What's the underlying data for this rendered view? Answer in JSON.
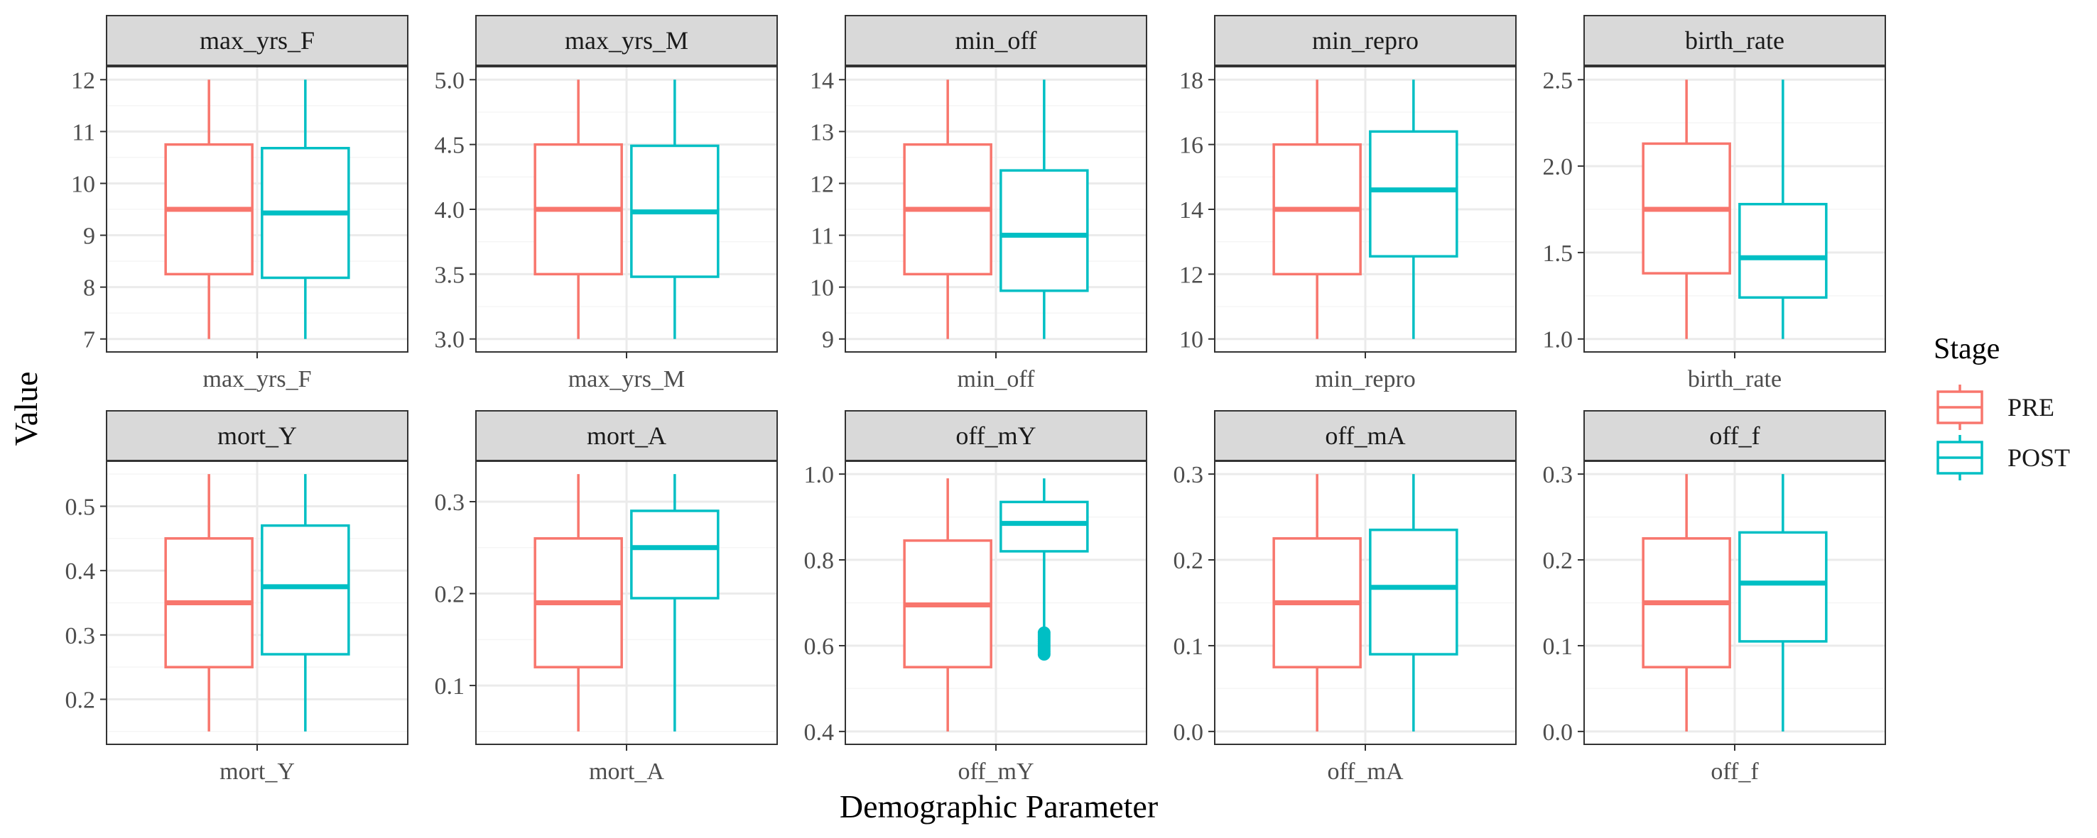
{
  "colors": {
    "PRE": "#F8766D",
    "POST": "#00BFC4",
    "grid_major": "#EBEBEB",
    "grid_minor": "#F5F5F5",
    "strip_fill": "#D9D9D9",
    "panel_border": "#333333"
  },
  "chart_data": {
    "type": "boxplot",
    "xlabel": "Demographic Parameter",
    "ylabel": "Value",
    "legend": {
      "title": "Stage",
      "position": "right",
      "entries": [
        "PRE",
        "POST"
      ]
    },
    "grid": true,
    "panels": [
      {
        "name": "max_yrs_F",
        "x_tick": "max_yrs_F",
        "ylim": [
          6.75,
          12.25
        ],
        "y_ticks": [
          7,
          8,
          9,
          10,
          11,
          12
        ],
        "boxes": [
          {
            "stage": "PRE",
            "min": 7,
            "q1": 8.25,
            "median": 9.5,
            "q3": 10.75,
            "max": 12
          },
          {
            "stage": "POST",
            "min": 7,
            "q1": 8.18,
            "median": 9.43,
            "q3": 10.68,
            "max": 12
          }
        ]
      },
      {
        "name": "max_yrs_M",
        "x_tick": "max_yrs_M",
        "ylim": [
          2.9,
          5.1
        ],
        "y_ticks": [
          3.0,
          3.5,
          4.0,
          4.5,
          5.0
        ],
        "boxes": [
          {
            "stage": "PRE",
            "min": 3.0,
            "q1": 3.5,
            "median": 4.0,
            "q3": 4.5,
            "max": 5.0
          },
          {
            "stage": "POST",
            "min": 3.0,
            "q1": 3.48,
            "median": 3.98,
            "q3": 4.49,
            "max": 5.0
          }
        ]
      },
      {
        "name": "min_off",
        "x_tick": "min_off",
        "ylim": [
          8.75,
          14.25
        ],
        "y_ticks": [
          9,
          10,
          11,
          12,
          13,
          14
        ],
        "boxes": [
          {
            "stage": "PRE",
            "min": 9,
            "q1": 10.25,
            "median": 11.5,
            "q3": 12.75,
            "max": 14
          },
          {
            "stage": "POST",
            "min": 9,
            "q1": 9.93,
            "median": 11.0,
            "q3": 12.25,
            "max": 14
          }
        ]
      },
      {
        "name": "min_repro",
        "x_tick": "min_repro",
        "ylim": [
          9.6,
          18.4
        ],
        "y_ticks": [
          10,
          12,
          14,
          16,
          18
        ],
        "boxes": [
          {
            "stage": "PRE",
            "min": 10,
            "q1": 12.0,
            "median": 14.0,
            "q3": 16.0,
            "max": 18
          },
          {
            "stage": "POST",
            "min": 10,
            "q1": 12.55,
            "median": 14.6,
            "q3": 16.4,
            "max": 18
          }
        ]
      },
      {
        "name": "birth_rate",
        "x_tick": "birth_rate",
        "ylim": [
          0.925,
          2.575
        ],
        "y_ticks": [
          1.0,
          1.5,
          2.0,
          2.5
        ],
        "boxes": [
          {
            "stage": "PRE",
            "min": 1.0,
            "q1": 1.38,
            "median": 1.75,
            "q3": 2.13,
            "max": 2.5
          },
          {
            "stage": "POST",
            "min": 1.0,
            "q1": 1.24,
            "median": 1.47,
            "q3": 1.78,
            "max": 2.5
          }
        ]
      },
      {
        "name": "mort_Y",
        "x_tick": "mort_Y",
        "ylim": [
          0.13,
          0.57
        ],
        "y_ticks": [
          0.2,
          0.3,
          0.4,
          0.5
        ],
        "boxes": [
          {
            "stage": "PRE",
            "min": 0.15,
            "q1": 0.25,
            "median": 0.35,
            "q3": 0.45,
            "max": 0.55
          },
          {
            "stage": "POST",
            "min": 0.15,
            "q1": 0.27,
            "median": 0.375,
            "q3": 0.47,
            "max": 0.55
          }
        ]
      },
      {
        "name": "mort_A",
        "x_tick": "mort_A",
        "ylim": [
          0.036,
          0.344
        ],
        "y_ticks": [
          0.1,
          0.2,
          0.3
        ],
        "boxes": [
          {
            "stage": "PRE",
            "min": 0.05,
            "q1": 0.12,
            "median": 0.19,
            "q3": 0.26,
            "max": 0.33
          },
          {
            "stage": "POST",
            "min": 0.05,
            "q1": 0.195,
            "median": 0.25,
            "q3": 0.29,
            "max": 0.33
          }
        ]
      },
      {
        "name": "off_mY",
        "x_tick": "off_mY",
        "ylim": [
          0.37,
          1.03
        ],
        "y_ticks": [
          0.4,
          0.6,
          0.8,
          1.0
        ],
        "boxes": [
          {
            "stage": "PRE",
            "min": 0.4,
            "q1": 0.55,
            "median": 0.695,
            "q3": 0.845,
            "max": 0.99
          },
          {
            "stage": "POST",
            "min": 0.64,
            "q1": 0.82,
            "median": 0.885,
            "q3": 0.935,
            "max": 0.99,
            "outliers": [
              0.58,
              0.585,
              0.59,
              0.595,
              0.6,
              0.605,
              0.61,
              0.615,
              0.62,
              0.625,
              0.63
            ]
          }
        ]
      },
      {
        "name": "off_mA",
        "x_tick": "off_mA",
        "ylim": [
          -0.015,
          0.315
        ],
        "y_ticks": [
          0.0,
          0.1,
          0.2,
          0.3
        ],
        "boxes": [
          {
            "stage": "PRE",
            "min": 0.0,
            "q1": 0.075,
            "median": 0.15,
            "q3": 0.225,
            "max": 0.3
          },
          {
            "stage": "POST",
            "min": 0.0,
            "q1": 0.09,
            "median": 0.168,
            "q3": 0.235,
            "max": 0.3
          }
        ]
      },
      {
        "name": "off_f",
        "x_tick": "off_f",
        "ylim": [
          -0.015,
          0.315
        ],
        "y_ticks": [
          0.0,
          0.1,
          0.2,
          0.3
        ],
        "boxes": [
          {
            "stage": "PRE",
            "min": 0.0,
            "q1": 0.075,
            "median": 0.15,
            "q3": 0.225,
            "max": 0.3
          },
          {
            "stage": "POST",
            "min": 0.0,
            "q1": 0.105,
            "median": 0.173,
            "q3": 0.232,
            "max": 0.3
          }
        ]
      }
    ]
  }
}
